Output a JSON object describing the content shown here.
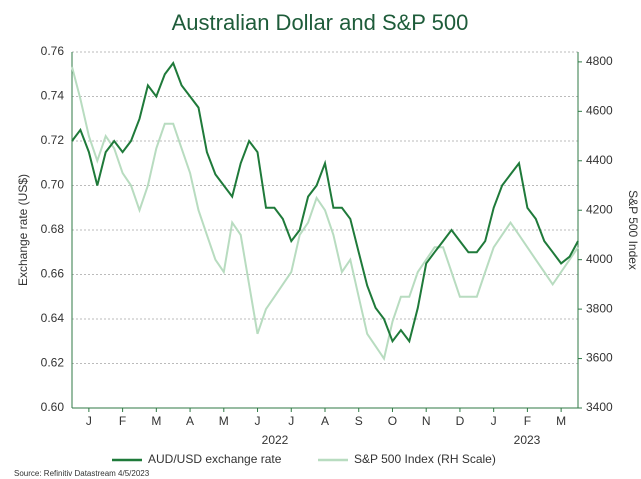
{
  "chart_data": {
    "type": "line",
    "title": "Australian Dollar and S&P 500",
    "y_label": "Exchange rate (US$)",
    "y2_label": "S&P 500 Index",
    "source": "Source: Refinitiv Datastream 4/5/2023",
    "x_groups": [
      "2022",
      "2023"
    ],
    "xlim": [
      0,
      15
    ],
    "xticks": [
      {
        "value": 0.5,
        "label": "J"
      },
      {
        "value": 1.5,
        "label": "F"
      },
      {
        "value": 2.5,
        "label": "M"
      },
      {
        "value": 3.5,
        "label": "A"
      },
      {
        "value": 4.5,
        "label": "M"
      },
      {
        "value": 5.5,
        "label": "J"
      },
      {
        "value": 6.5,
        "label": "J"
      },
      {
        "value": 7.5,
        "label": "A"
      },
      {
        "value": 8.5,
        "label": "S"
      },
      {
        "value": 9.5,
        "label": "O"
      },
      {
        "value": 10.5,
        "label": "N"
      },
      {
        "value": 11.5,
        "label": "D"
      },
      {
        "value": 12.5,
        "label": "J"
      },
      {
        "value": 13.5,
        "label": "F"
      },
      {
        "value": 14.5,
        "label": "M"
      }
    ],
    "x": [
      0,
      0.25,
      0.5,
      0.75,
      1,
      1.25,
      1.5,
      1.75,
      2,
      2.25,
      2.5,
      2.75,
      3,
      3.25,
      3.5,
      3.75,
      4,
      4.25,
      4.5,
      4.75,
      5,
      5.25,
      5.5,
      5.75,
      6,
      6.25,
      6.5,
      6.75,
      7,
      7.25,
      7.5,
      7.75,
      8,
      8.25,
      8.5,
      8.75,
      9,
      9.25,
      9.5,
      9.75,
      10,
      10.25,
      10.5,
      10.75,
      11,
      11.25,
      11.5,
      11.75,
      12,
      12.25,
      12.5,
      12.75,
      13,
      13.25,
      13.5,
      13.75,
      14,
      14.25,
      14.5,
      14.75,
      15
    ],
    "ylim": [
      0.6,
      0.76
    ],
    "yticks": [
      {
        "value": 0.6,
        "label": "0.60"
      },
      {
        "value": 0.62,
        "label": "0.62"
      },
      {
        "value": 0.64,
        "label": "0.64"
      },
      {
        "value": 0.66,
        "label": "0.66"
      },
      {
        "value": 0.68,
        "label": "0.68"
      },
      {
        "value": 0.7,
        "label": "0.70"
      },
      {
        "value": 0.72,
        "label": "0.72"
      },
      {
        "value": 0.74,
        "label": "0.74"
      },
      {
        "value": 0.76,
        "label": "0.76"
      }
    ],
    "y2lim": [
      3400,
      4840
    ],
    "y2ticks": [
      3400,
      3600,
      3800,
      4000,
      4200,
      4400,
      4600,
      4800
    ],
    "grid": true,
    "series": [
      {
        "name": "AUD/USD exchange rate",
        "color": "#1f7a3a",
        "axis": "y",
        "values": [
          0.72,
          0.725,
          0.715,
          0.7,
          0.715,
          0.72,
          0.715,
          0.72,
          0.73,
          0.745,
          0.74,
          0.75,
          0.755,
          0.745,
          0.74,
          0.735,
          0.715,
          0.705,
          0.7,
          0.695,
          0.71,
          0.72,
          0.715,
          0.69,
          0.69,
          0.685,
          0.675,
          0.68,
          0.695,
          0.7,
          0.71,
          0.69,
          0.69,
          0.685,
          0.67,
          0.655,
          0.645,
          0.64,
          0.63,
          0.635,
          0.63,
          0.645,
          0.665,
          0.67,
          0.675,
          0.68,
          0.675,
          0.67,
          0.67,
          0.675,
          0.69,
          0.7,
          0.705,
          0.71,
          0.69,
          0.685,
          0.675,
          0.67,
          0.665,
          0.668,
          0.675
        ]
      },
      {
        "name": "S&P 500 Index (RH Scale)",
        "color": "#b8dcc0",
        "axis": "y2",
        "values": [
          4780,
          4650,
          4500,
          4400,
          4500,
          4450,
          4350,
          4300,
          4200,
          4300,
          4450,
          4550,
          4550,
          4450,
          4350,
          4200,
          4100,
          4000,
          3950,
          4150,
          4100,
          3900,
          3700,
          3800,
          3850,
          3900,
          3950,
          4100,
          4150,
          4250,
          4200,
          4100,
          3950,
          4000,
          3850,
          3700,
          3650,
          3600,
          3750,
          3850,
          3850,
          3950,
          4000,
          4050,
          4050,
          3950,
          3850,
          3850,
          3850,
          3950,
          4050,
          4100,
          4150,
          4100,
          4050,
          4000,
          3950,
          3900,
          3950,
          4000,
          4050
        ]
      }
    ]
  }
}
